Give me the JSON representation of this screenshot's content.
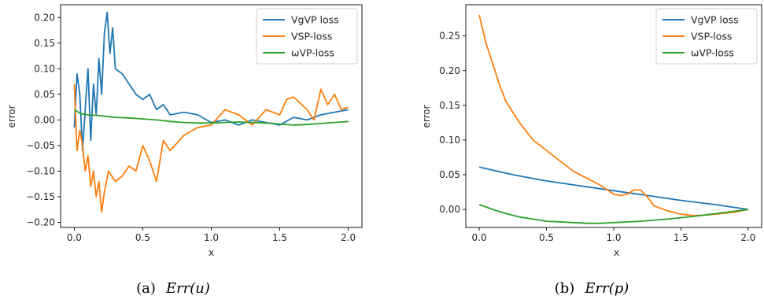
{
  "chart_data": [
    {
      "type": "line",
      "caption_prefix": "(a)",
      "caption_math": "Err(u)",
      "xlabel": "x",
      "ylabel": "error",
      "xlim": [
        -0.1,
        2.1
      ],
      "ylim": [
        -0.21,
        0.225
      ],
      "xticks": [
        0.0,
        0.5,
        1.0,
        1.5,
        2.0
      ],
      "xtick_labels": [
        "0.0",
        "0.5",
        "1.0",
        "1.5",
        "2.0"
      ],
      "yticks": [
        -0.2,
        -0.15,
        -0.1,
        -0.05,
        0.0,
        0.05,
        0.1,
        0.15,
        0.2
      ],
      "ytick_labels": [
        "−0.20",
        "−0.15",
        "−0.10",
        "−0.05",
        "0.00",
        "0.05",
        "0.10",
        "0.15",
        "0.20"
      ],
      "legend_position": "top-right",
      "grid": false,
      "series": [
        {
          "name": "VgVP loss",
          "color": "#1f77b4",
          "x": [
            0.0,
            0.02,
            0.04,
            0.06,
            0.08,
            0.1,
            0.12,
            0.14,
            0.16,
            0.18,
            0.2,
            0.22,
            0.24,
            0.26,
            0.28,
            0.3,
            0.35,
            0.4,
            0.45,
            0.5,
            0.55,
            0.6,
            0.65,
            0.7,
            0.8,
            0.9,
            1.0,
            1.1,
            1.2,
            1.3,
            1.4,
            1.5,
            1.6,
            1.7,
            1.8,
            1.9,
            2.0
          ],
          "y": [
            -0.015,
            0.09,
            0.05,
            -0.06,
            0.02,
            0.1,
            -0.04,
            0.07,
            0.01,
            0.12,
            0.05,
            0.17,
            0.21,
            0.13,
            0.18,
            0.1,
            0.09,
            0.07,
            0.05,
            0.04,
            0.05,
            0.02,
            0.03,
            0.01,
            0.015,
            0.01,
            -0.005,
            0.0,
            -0.01,
            0.0,
            -0.005,
            -0.01,
            0.005,
            0.0,
            0.01,
            0.015,
            0.02
          ]
        },
        {
          "name": "VSP-loss",
          "color": "#ff7f0e",
          "x": [
            0.0,
            0.02,
            0.04,
            0.06,
            0.08,
            0.1,
            0.12,
            0.14,
            0.16,
            0.18,
            0.2,
            0.22,
            0.25,
            0.3,
            0.35,
            0.4,
            0.45,
            0.5,
            0.55,
            0.6,
            0.65,
            0.7,
            0.8,
            0.9,
            1.0,
            1.1,
            1.2,
            1.3,
            1.4,
            1.5,
            1.55,
            1.6,
            1.7,
            1.75,
            1.8,
            1.85,
            1.9,
            1.95,
            2.0
          ],
          "y": [
            0.07,
            -0.06,
            -0.02,
            -0.05,
            -0.1,
            -0.07,
            -0.13,
            -0.1,
            -0.15,
            -0.12,
            -0.18,
            -0.14,
            -0.1,
            -0.12,
            -0.11,
            -0.09,
            -0.1,
            -0.05,
            -0.08,
            -0.12,
            -0.04,
            -0.06,
            -0.03,
            -0.015,
            -0.01,
            0.02,
            0.01,
            -0.01,
            0.02,
            0.01,
            0.04,
            0.045,
            0.02,
            0.0,
            0.06,
            0.03,
            0.05,
            0.02,
            0.025
          ]
        },
        {
          "name": "ωVP-loss",
          "color": "#2ca02c",
          "x": [
            0.0,
            0.05,
            0.1,
            0.2,
            0.3,
            0.4,
            0.5,
            0.6,
            0.7,
            0.8,
            0.9,
            1.0,
            1.1,
            1.2,
            1.3,
            1.4,
            1.5,
            1.6,
            1.7,
            1.8,
            1.9,
            2.0
          ],
          "y": [
            0.02,
            0.012,
            0.01,
            0.008,
            0.005,
            0.004,
            0.002,
            0.0,
            -0.003,
            -0.005,
            -0.006,
            -0.006,
            -0.005,
            -0.004,
            -0.005,
            -0.006,
            -0.008,
            -0.01,
            -0.009,
            -0.007,
            -0.005,
            -0.003
          ]
        }
      ]
    },
    {
      "type": "line",
      "caption_prefix": "(b)",
      "caption_math": "Err(p)",
      "xlabel": "x",
      "ylabel": "error",
      "xlim": [
        -0.1,
        2.1
      ],
      "ylim": [
        -0.026,
        0.295
      ],
      "xticks": [
        0.0,
        0.5,
        1.0,
        1.5,
        2.0
      ],
      "xtick_labels": [
        "0.0",
        "0.5",
        "1.0",
        "1.5",
        "2.0"
      ],
      "yticks": [
        0.0,
        0.05,
        0.1,
        0.15,
        0.2,
        0.25
      ],
      "ytick_labels": [
        "0.00",
        "0.05",
        "0.10",
        "0.15",
        "0.20",
        "0.25"
      ],
      "legend_position": "top-right",
      "grid": false,
      "series": [
        {
          "name": "VgVP loss",
          "color": "#1f77b4",
          "x": [
            0.0,
            0.25,
            0.5,
            0.75,
            1.0,
            1.25,
            1.5,
            1.75,
            2.0
          ],
          "y": [
            0.061,
            0.05,
            0.041,
            0.034,
            0.027,
            0.02,
            0.013,
            0.007,
            0.0
          ]
        },
        {
          "name": "VSP-loss",
          "color": "#ff7f0e",
          "x": [
            0.0,
            0.05,
            0.1,
            0.15,
            0.2,
            0.3,
            0.4,
            0.5,
            0.6,
            0.7,
            0.8,
            0.9,
            1.0,
            1.05,
            1.1,
            1.15,
            1.2,
            1.25,
            1.3,
            1.4,
            1.5,
            1.6,
            1.7,
            1.8,
            1.9,
            2.0
          ],
          "y": [
            0.28,
            0.24,
            0.21,
            0.18,
            0.155,
            0.125,
            0.1,
            0.085,
            0.07,
            0.055,
            0.045,
            0.035,
            0.022,
            0.02,
            0.022,
            0.028,
            0.028,
            0.018,
            0.005,
            -0.002,
            -0.007,
            -0.009,
            -0.008,
            -0.006,
            -0.004,
            0.0
          ]
        },
        {
          "name": "ωVP-loss",
          "color": "#2ca02c",
          "x": [
            0.0,
            0.1,
            0.2,
            0.3,
            0.4,
            0.5,
            0.6,
            0.7,
            0.8,
            0.9,
            1.0,
            1.2,
            1.4,
            1.6,
            1.8,
            2.0
          ],
          "y": [
            0.007,
            0.0,
            -0.006,
            -0.011,
            -0.014,
            -0.017,
            -0.018,
            -0.019,
            -0.02,
            -0.02,
            -0.019,
            -0.017,
            -0.014,
            -0.01,
            -0.005,
            0.0
          ]
        }
      ]
    }
  ]
}
